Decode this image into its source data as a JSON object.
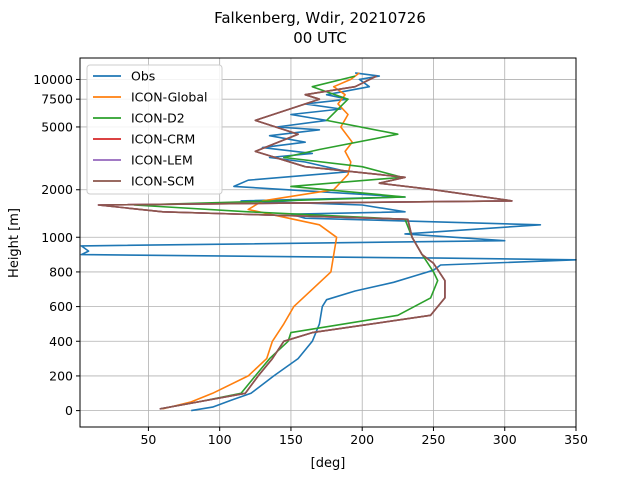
{
  "chart_data": {
    "type": "line",
    "title": "Falkenberg, Wdir, 20210726",
    "subtitle": "00 UTC",
    "xlabel": "[deg]",
    "ylabel": "Height [m]",
    "xlim": [
      2,
      350
    ],
    "xticks": [
      50,
      100,
      150,
      200,
      250,
      300,
      350
    ],
    "yticks": [
      {
        "value": 0,
        "label": "0"
      },
      {
        "value": 200,
        "label": "200"
      },
      {
        "value": 400,
        "label": "400"
      },
      {
        "value": 600,
        "label": "600"
      },
      {
        "value": 800,
        "label": "800"
      },
      {
        "value": 1000,
        "label": "1000"
      },
      {
        "value": 2000,
        "label": "2000"
      },
      {
        "value": 5000,
        "label": "5000"
      },
      {
        "value": 7500,
        "label": "7500"
      },
      {
        "value": 10000,
        "label": "10000"
      }
    ],
    "grid": true,
    "legend_position": "top-left",
    "series": [
      {
        "name": "Obs",
        "color": "#1f77b4",
        "points": [
          [
            80,
            0
          ],
          [
            95,
            20
          ],
          [
            108,
            60
          ],
          [
            122,
            100
          ],
          [
            138,
            200
          ],
          [
            155,
            300
          ],
          [
            165,
            400
          ],
          [
            170,
            500
          ],
          [
            172,
            600
          ],
          [
            175,
            640
          ],
          [
            195,
            690
          ],
          [
            222,
            740
          ],
          [
            238,
            780
          ],
          [
            250,
            810
          ],
          [
            255,
            840
          ],
          [
            350,
            870
          ],
          [
            255,
            880
          ],
          [
            3,
            900
          ],
          [
            8,
            920
          ],
          [
            3,
            950
          ],
          [
            300,
            980
          ],
          [
            230,
            1050
          ],
          [
            325,
            1200
          ],
          [
            160,
            1320
          ],
          [
            150,
            1400
          ],
          [
            230,
            1450
          ],
          [
            200,
            1600
          ],
          [
            115,
            1700
          ],
          [
            230,
            1800
          ],
          [
            110,
            2100
          ],
          [
            120,
            2300
          ],
          [
            190,
            2600
          ],
          [
            160,
            3000
          ],
          [
            135,
            3200
          ],
          [
            165,
            3400
          ],
          [
            130,
            3700
          ],
          [
            160,
            4000
          ],
          [
            135,
            4400
          ],
          [
            170,
            4800
          ],
          [
            140,
            5000
          ],
          [
            175,
            5500
          ],
          [
            150,
            6000
          ],
          [
            185,
            6500
          ],
          [
            160,
            7000
          ],
          [
            190,
            7500
          ],
          [
            175,
            8000
          ],
          [
            205,
            9000
          ],
          [
            198,
            10000
          ],
          [
            212,
            10500
          ],
          [
            195,
            11000
          ]
        ]
      },
      {
        "name": "ICON-Global",
        "color": "#ff7f0e",
        "points": [
          [
            60,
            10
          ],
          [
            80,
            50
          ],
          [
            95,
            100
          ],
          [
            120,
            200
          ],
          [
            133,
            300
          ],
          [
            137,
            400
          ],
          [
            145,
            500
          ],
          [
            152,
            600
          ],
          [
            165,
            700
          ],
          [
            178,
            800
          ],
          [
            182,
            1000
          ],
          [
            170,
            1200
          ],
          [
            120,
            1500
          ],
          [
            130,
            1700
          ],
          [
            180,
            2000
          ],
          [
            190,
            2500
          ],
          [
            192,
            3000
          ],
          [
            188,
            3500
          ],
          [
            193,
            4000
          ],
          [
            185,
            5000
          ],
          [
            190,
            6000
          ],
          [
            183,
            7000
          ],
          [
            188,
            8000
          ],
          [
            180,
            9000
          ],
          [
            192,
            10000
          ],
          [
            198,
            11000
          ]
        ]
      },
      {
        "name": "ICON-D2",
        "color": "#2ca02c",
        "points": [
          [
            58,
            10
          ],
          [
            85,
            50
          ],
          [
            115,
            100
          ],
          [
            125,
            200
          ],
          [
            135,
            300
          ],
          [
            148,
            400
          ],
          [
            150,
            450
          ],
          [
            225,
            550
          ],
          [
            248,
            650
          ],
          [
            253,
            750
          ],
          [
            250,
            800
          ],
          [
            242,
            900
          ],
          [
            235,
            1000
          ],
          [
            230,
            1300
          ],
          [
            120,
            1450
          ],
          [
            40,
            1600
          ],
          [
            140,
            1700
          ],
          [
            230,
            1800
          ],
          [
            150,
            2100
          ],
          [
            228,
            2400
          ],
          [
            200,
            2800
          ],
          [
            145,
            3200
          ],
          [
            170,
            3600
          ],
          [
            225,
            4500
          ],
          [
            175,
            5500
          ],
          [
            190,
            7500
          ],
          [
            165,
            9000
          ],
          [
            195,
            10500
          ]
        ]
      },
      {
        "name": "ICON-CRM",
        "color": "#d62728",
        "points": [
          [
            58,
            10
          ],
          [
            85,
            50
          ],
          [
            118,
            100
          ],
          [
            127,
            200
          ],
          [
            137,
            300
          ],
          [
            145,
            400
          ],
          [
            165,
            450
          ],
          [
            248,
            550
          ],
          [
            258,
            650
          ],
          [
            258,
            750
          ],
          [
            250,
            850
          ],
          [
            242,
            900
          ],
          [
            235,
            1000
          ],
          [
            232,
            1300
          ],
          [
            60,
            1450
          ],
          [
            15,
            1600
          ],
          [
            305,
            1700
          ],
          [
            250,
            2000
          ],
          [
            212,
            2200
          ],
          [
            230,
            2400
          ],
          [
            160,
            2800
          ],
          [
            125,
            3500
          ],
          [
            155,
            4500
          ],
          [
            125,
            5500
          ],
          [
            170,
            7500
          ],
          [
            160,
            8000
          ],
          [
            195,
            9000
          ],
          [
            210,
            10500
          ]
        ]
      },
      {
        "name": "ICON-LEM",
        "color": "#9467bd",
        "points": [
          [
            58,
            10
          ],
          [
            85,
            50
          ],
          [
            118,
            100
          ],
          [
            127,
            200
          ],
          [
            137,
            300
          ],
          [
            145,
            400
          ],
          [
            165,
            450
          ],
          [
            248,
            550
          ],
          [
            258,
            650
          ],
          [
            258,
            750
          ],
          [
            250,
            850
          ],
          [
            242,
            900
          ],
          [
            235,
            1000
          ],
          [
            232,
            1300
          ],
          [
            60,
            1450
          ],
          [
            15,
            1600
          ],
          [
            305,
            1700
          ],
          [
            250,
            2000
          ],
          [
            212,
            2200
          ],
          [
            230,
            2400
          ],
          [
            160,
            2800
          ],
          [
            125,
            3500
          ],
          [
            155,
            4500
          ],
          [
            125,
            5500
          ],
          [
            170,
            7500
          ],
          [
            160,
            8000
          ],
          [
            195,
            9000
          ],
          [
            210,
            10500
          ]
        ]
      },
      {
        "name": "ICON-SCM",
        "color": "#8c564b",
        "points": [
          [
            58,
            10
          ],
          [
            85,
            50
          ],
          [
            118,
            100
          ],
          [
            127,
            200
          ],
          [
            137,
            300
          ],
          [
            145,
            400
          ],
          [
            165,
            450
          ],
          [
            248,
            550
          ],
          [
            258,
            650
          ],
          [
            258,
            750
          ],
          [
            250,
            850
          ],
          [
            242,
            900
          ],
          [
            235,
            1000
          ],
          [
            232,
            1300
          ],
          [
            60,
            1450
          ],
          [
            15,
            1600
          ],
          [
            305,
            1700
          ],
          [
            250,
            2000
          ],
          [
            212,
            2200
          ],
          [
            230,
            2400
          ],
          [
            160,
            2800
          ],
          [
            125,
            3500
          ],
          [
            155,
            4500
          ],
          [
            125,
            5500
          ],
          [
            170,
            7500
          ],
          [
            160,
            8000
          ],
          [
            195,
            9000
          ],
          [
            210,
            10500
          ]
        ]
      }
    ]
  }
}
